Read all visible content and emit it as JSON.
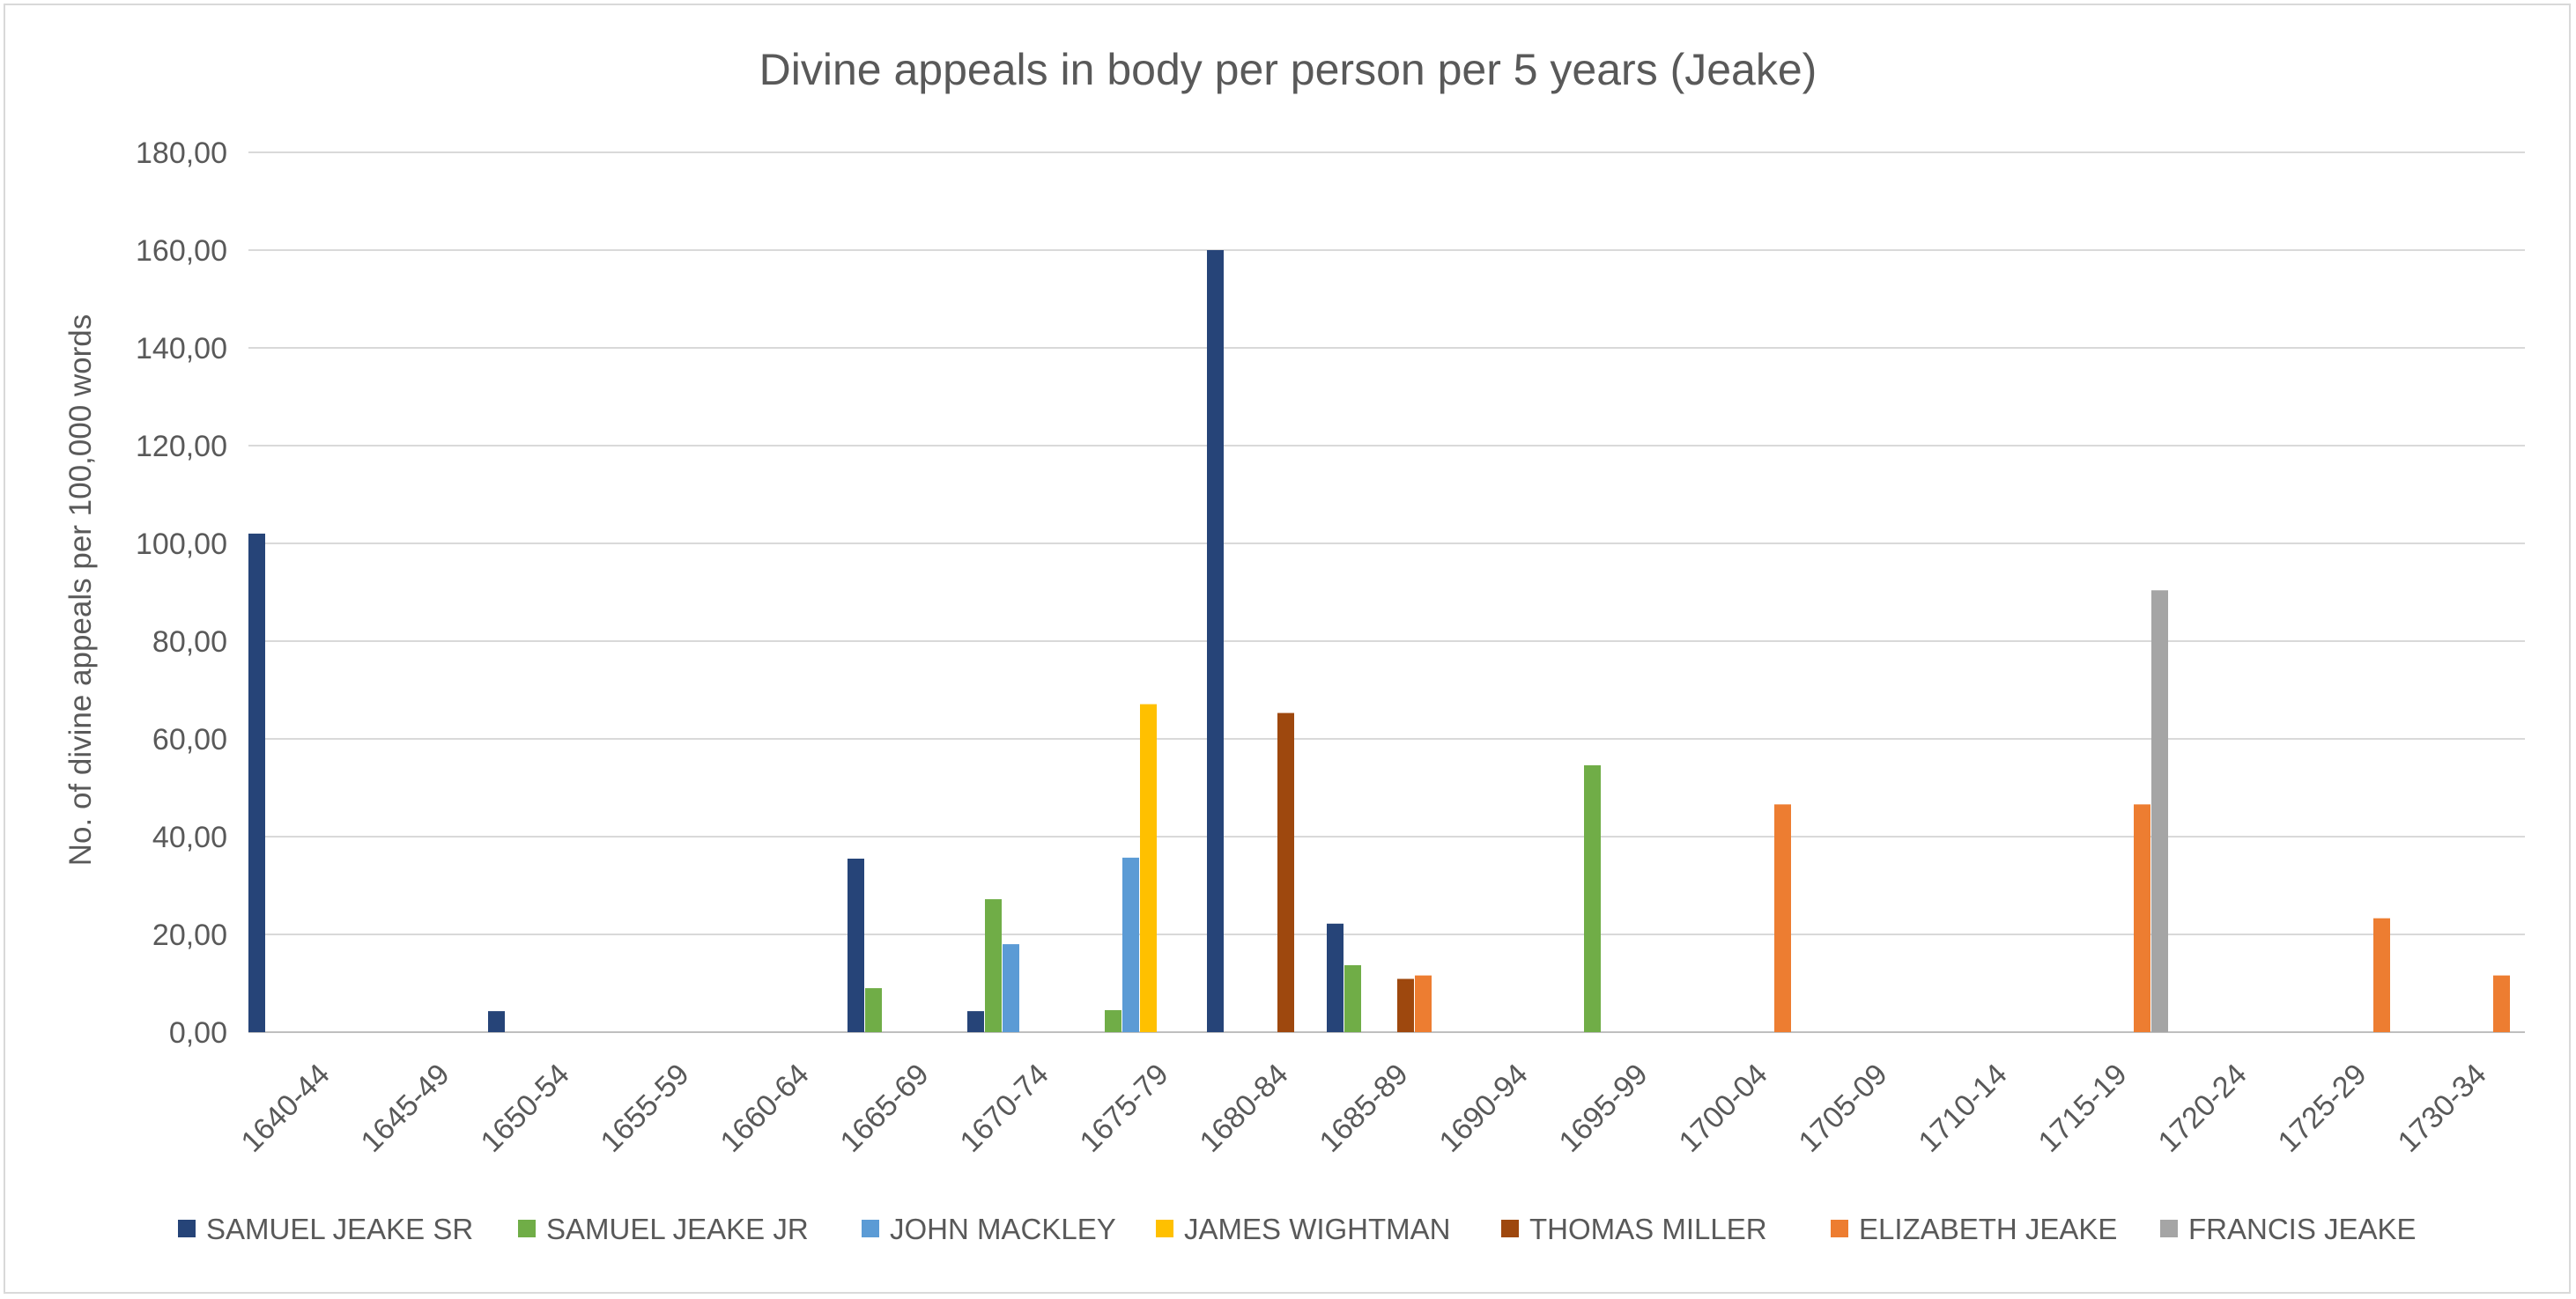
{
  "chart_data": {
    "type": "bar",
    "title": "Divine appeals in body per person per 5 years (Jeake)",
    "xlabel": "",
    "ylabel": "No. of divine appeals per 100,000 words",
    "ylim": [
      0,
      180
    ],
    "yticks": [
      "0,00",
      "20,00",
      "40,00",
      "60,00",
      "80,00",
      "100,00",
      "120,00",
      "140,00",
      "160,00",
      "180,00"
    ],
    "grid": true,
    "legend_position": "bottom",
    "categories": [
      "1640-44",
      "1645-49",
      "1650-54",
      "1655-59",
      "1660-64",
      "1665-69",
      "1670-74",
      "1675-79",
      "1680-84",
      "1685-89",
      "1690-94",
      "1695-99",
      "1700-04",
      "1705-09",
      "1710-14",
      "1715-19",
      "1720-24",
      "1725-29",
      "1730-34"
    ],
    "series": [
      {
        "name": "SAMUEL JEAKE SR",
        "color": "#264478",
        "values": [
          102.0,
          null,
          4.3,
          null,
          null,
          35.5,
          4.3,
          null,
          160.0,
          22.2,
          null,
          null,
          null,
          null,
          null,
          null,
          null,
          null,
          null
        ]
      },
      {
        "name": "SAMUEL JEAKE JR",
        "color": "#70ad47",
        "values": [
          null,
          null,
          null,
          null,
          null,
          9.0,
          27.2,
          4.5,
          null,
          13.7,
          null,
          54.6,
          null,
          null,
          null,
          null,
          null,
          null,
          null
        ]
      },
      {
        "name": "JOHN MACKLEY",
        "color": "#5b9bd5",
        "values": [
          null,
          null,
          null,
          null,
          null,
          null,
          18.0,
          35.7,
          null,
          null,
          null,
          null,
          null,
          null,
          null,
          null,
          null,
          null,
          null
        ]
      },
      {
        "name": "JAMES WIGHTMAN",
        "color": "#ffc000",
        "values": [
          null,
          null,
          null,
          null,
          null,
          null,
          null,
          67.1,
          null,
          null,
          null,
          null,
          null,
          null,
          null,
          null,
          null,
          null,
          null
        ]
      },
      {
        "name": "THOMAS MILLER",
        "color": "#9e480e",
        "values": [
          null,
          null,
          null,
          null,
          null,
          null,
          null,
          null,
          65.3,
          10.9,
          null,
          null,
          null,
          null,
          null,
          null,
          null,
          null,
          null
        ]
      },
      {
        "name": "ELIZABETH JEAKE",
        "color": "#ed7d31",
        "values": [
          null,
          null,
          null,
          null,
          null,
          null,
          null,
          null,
          null,
          11.6,
          null,
          null,
          46.6,
          null,
          null,
          46.6,
          null,
          23.3,
          11.6
        ]
      },
      {
        "name": "FRANCIS JEAKE",
        "color": "#a5a5a5",
        "values": [
          null,
          null,
          null,
          null,
          null,
          null,
          null,
          null,
          null,
          null,
          null,
          null,
          null,
          null,
          null,
          90.4,
          null,
          null,
          null
        ]
      }
    ]
  }
}
